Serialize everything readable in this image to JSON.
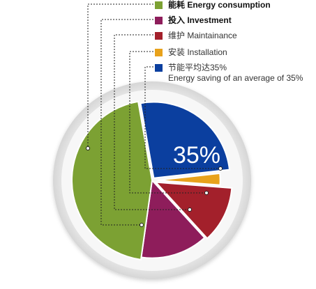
{
  "chart_data": {
    "type": "pie",
    "title": "",
    "categories": [
      "能耗 Energy consumption",
      "投入 Investment",
      "维护 Maintainance",
      "安装 Installation",
      "节能平均达35%"
    ],
    "values": [
      45,
      14,
      12,
      3,
      26
    ],
    "colors": [
      "#7ca133",
      "#8e1d5b",
      "#a3202b",
      "#e8a21b",
      "#0b3f9f"
    ],
    "center_label": "35%",
    "legend_placement": "top-right"
  },
  "legend": {
    "items": [
      {
        "label": "能耗 Energy consumption",
        "color": "#7ca133",
        "bold": true
      },
      {
        "label": "投入 Investment",
        "color": "#8e1d5b",
        "bold": true
      },
      {
        "label": "维护 Maintainance",
        "color": "#a3202b",
        "bold": false
      },
      {
        "label": "安装 Installation",
        "color": "#e8a21b",
        "bold": false
      },
      {
        "label": "节能平均达35%",
        "color": "#0b3f9f",
        "bold": false,
        "sub": "Energy saving of an average of 35%"
      }
    ]
  }
}
